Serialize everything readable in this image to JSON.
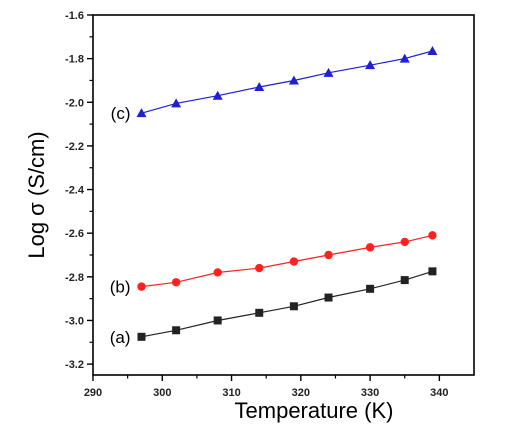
{
  "chart_data": {
    "type": "line",
    "xlabel": "Temperature (K)",
    "ylabel": "Log σ (S/cm)",
    "xlim": [
      290,
      345
    ],
    "ylim": [
      -3.25,
      -1.6
    ],
    "xticks": [
      "290",
      "300",
      "310",
      "320",
      "330",
      "340"
    ],
    "yticks": [
      "-3.2",
      "-3.0",
      "-2.8",
      "-2.6",
      "-2.4",
      "-2.2",
      "-2.0",
      "-1.8",
      "-1.6"
    ],
    "grid": false,
    "series": [
      {
        "name": "(a)",
        "color": "#222222",
        "marker": "square",
        "x": [
          297,
          302,
          308,
          314,
          319,
          324,
          330,
          335,
          339
        ],
        "y": [
          -3.075,
          -3.045,
          -3.0,
          -2.965,
          -2.935,
          -2.895,
          -2.855,
          -2.815,
          -2.775
        ]
      },
      {
        "name": "(b)",
        "color": "#ff2020",
        "marker": "circle",
        "x": [
          297,
          302,
          308,
          314,
          319,
          324,
          330,
          335,
          339
        ],
        "y": [
          -2.845,
          -2.825,
          -2.78,
          -2.76,
          -2.73,
          -2.7,
          -2.665,
          -2.64,
          -2.61
        ]
      },
      {
        "name": "(c)",
        "color": "#1f1fd6",
        "marker": "triangle",
        "x": [
          297,
          302,
          308,
          314,
          319,
          324,
          330,
          335,
          339
        ],
        "y": [
          -2.05,
          -2.005,
          -1.97,
          -1.93,
          -1.9,
          -1.865,
          -1.83,
          -1.8,
          -1.765
        ]
      }
    ]
  }
}
